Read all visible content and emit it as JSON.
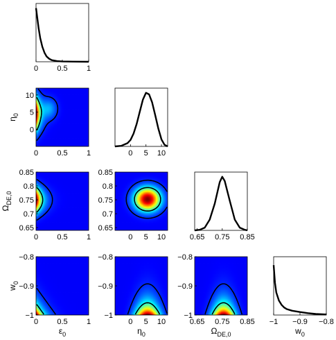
{
  "chart_data": {
    "type": "corner",
    "parameters": [
      {
        "name": "ε",
        "sub": "0",
        "range": [
          0,
          1
        ],
        "ticks": [
          0,
          0.5,
          1
        ],
        "tick_labels": [
          "0",
          "0.5",
          "1"
        ]
      },
      {
        "name": "η",
        "sub": "0",
        "range": [
          -5,
          12
        ],
        "ticks": [
          0,
          5,
          10
        ],
        "tick_labels": [
          "0",
          "5",
          "10"
        ]
      },
      {
        "name": "Ω",
        "sub": "DE,0",
        "range": [
          0.64,
          0.85
        ],
        "ticks": [
          0.65,
          0.7,
          0.75,
          0.8,
          0.85
        ],
        "tick_labels": [
          "0.65",
          "0.7",
          "0.75",
          "0.8",
          "0.85"
        ],
        "x_ticks": [
          0.65,
          0.75,
          0.85
        ],
        "x_tick_labels": [
          "0.65",
          "0.75",
          "0.85"
        ]
      },
      {
        "name": "w",
        "sub": "0",
        "range": [
          -1,
          -0.8
        ],
        "ticks": [
          -1,
          -0.9,
          -0.8
        ],
        "tick_labels": [
          "−1",
          "−0.9",
          "−0.8"
        ]
      }
    ],
    "marginals": [
      {
        "param": 0,
        "x": [
          0,
          0.02,
          0.05,
          0.08,
          0.12,
          0.16,
          0.2,
          0.25,
          0.3,
          0.4,
          0.5,
          0.7,
          1.0
        ],
        "y": [
          1.0,
          0.85,
          0.62,
          0.44,
          0.28,
          0.17,
          0.1,
          0.055,
          0.03,
          0.012,
          0.005,
          0.002,
          0.0
        ]
      },
      {
        "param": 1,
        "x": [
          -5,
          -3,
          -1,
          0,
          1,
          2,
          3,
          4,
          5,
          6,
          7,
          8,
          9,
          10,
          11,
          12
        ],
        "y": [
          0.0,
          0.01,
          0.06,
          0.12,
          0.24,
          0.42,
          0.65,
          0.87,
          1.0,
          0.97,
          0.82,
          0.58,
          0.33,
          0.13,
          0.03,
          0.0
        ]
      },
      {
        "param": 2,
        "x": [
          0.64,
          0.66,
          0.68,
          0.7,
          0.72,
          0.74,
          0.75,
          0.76,
          0.78,
          0.8,
          0.82,
          0.84,
          0.85
        ],
        "y": [
          0.0,
          0.01,
          0.05,
          0.2,
          0.5,
          0.9,
          1.0,
          0.92,
          0.55,
          0.2,
          0.05,
          0.01,
          0.0
        ]
      },
      {
        "param": 3,
        "x": [
          -1.0,
          -0.995,
          -0.99,
          -0.98,
          -0.97,
          -0.96,
          -0.95,
          -0.93,
          -0.9,
          -0.87,
          -0.84,
          -0.8
        ],
        "y": [
          0.93,
          0.6,
          0.42,
          0.27,
          0.19,
          0.14,
          0.11,
          0.08,
          0.055,
          0.035,
          0.02,
          0.01
        ]
      }
    ],
    "joint": [
      {
        "x_param": 0,
        "y_param": 1
      },
      {
        "x_param": 0,
        "y_param": 2
      },
      {
        "x_param": 1,
        "y_param": 2
      },
      {
        "x_param": 0,
        "y_param": 3
      },
      {
        "x_param": 1,
        "y_param": 3
      },
      {
        "x_param": 2,
        "y_param": 3
      }
    ],
    "colormap": "jet",
    "contour_levels": 2,
    "grid": false
  }
}
